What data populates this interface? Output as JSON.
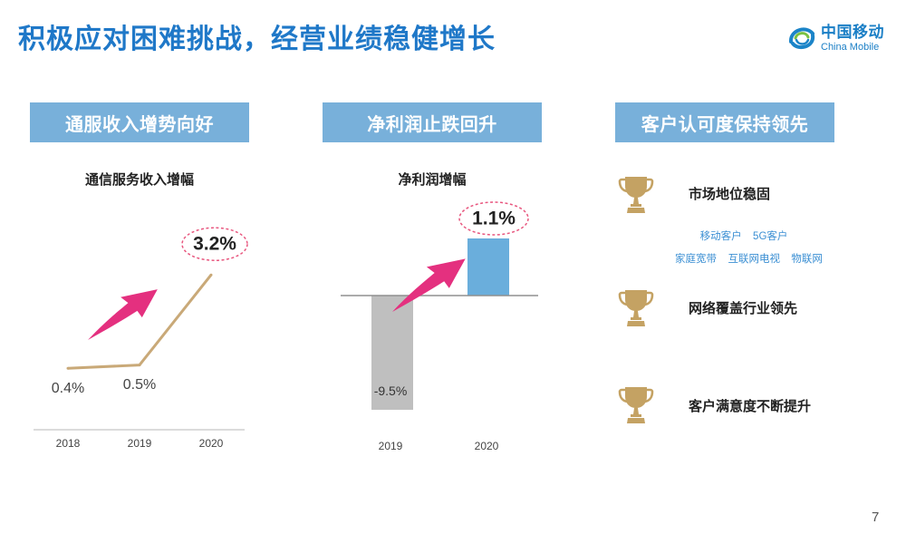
{
  "slide": {
    "title": "积极应对困难挑战，经营业绩稳健增长",
    "page_number": "7",
    "logo": {
      "name_cn": "中国移动",
      "name_en": "China Mobile",
      "icon": "china-mobile-swirl-icon"
    }
  },
  "colors": {
    "title": "#1f78c8",
    "header_bg": "#78b0da",
    "header_text": "#ffffff",
    "arrow": "#e4307f",
    "highlight_ring": "#e8577f",
    "tag_text": "#3b8fd3",
    "trophy": "#c4a263",
    "axis": "#cfcfcf",
    "baseline": "#8f8f8f"
  },
  "columns": [
    {
      "header": "通服收入增势向好"
    },
    {
      "header": "净利润止跌回升"
    },
    {
      "header": "客户认可度保持领先"
    }
  ],
  "chart_data": [
    {
      "type": "line",
      "title": "通信服务收入增幅",
      "categories": [
        "2018",
        "2019",
        "2020"
      ],
      "values": [
        0.4,
        0.5,
        3.2
      ],
      "value_labels": [
        "0.4%",
        "0.5%",
        "3.2%"
      ],
      "highlight_index": 2,
      "color": "#c9a978",
      "grid": false,
      "xlabel": "",
      "ylabel": ""
    },
    {
      "type": "bar",
      "title": "净利润增幅",
      "categories": [
        "2019",
        "2020"
      ],
      "values": [
        -9.5,
        1.1
      ],
      "value_labels": [
        "-9.5%",
        "1.1%"
      ],
      "highlight_index": 1,
      "colors": [
        "#bfbfbf",
        "#6aaedc"
      ],
      "grid": false,
      "xlabel": "",
      "ylabel": ""
    }
  ],
  "recognition": {
    "items": [
      {
        "icon": "trophy-icon",
        "label": "市场地位稳固",
        "tags": [
          [
            "移动客户",
            "5G客户"
          ],
          [
            "家庭宽带",
            "互联网电视",
            "物联网"
          ]
        ]
      },
      {
        "icon": "trophy-icon",
        "label": "网络覆盖行业领先"
      },
      {
        "icon": "trophy-icon",
        "label": "客户满意度不断提升"
      }
    ]
  },
  "decorations": {
    "arrow_icon": "growth-arrow-icon"
  }
}
